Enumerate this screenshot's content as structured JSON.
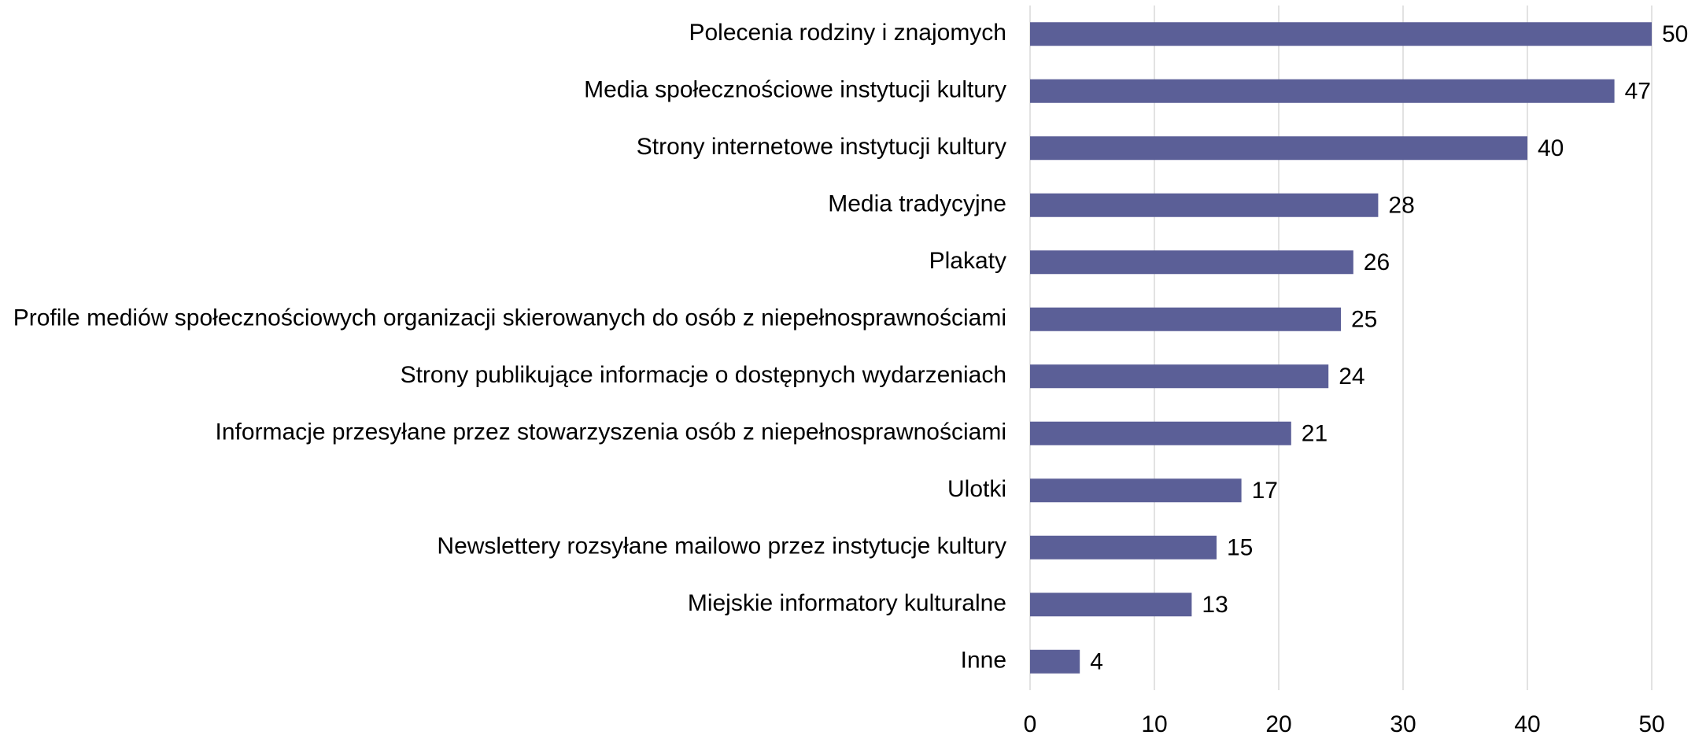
{
  "chart_data": {
    "type": "barh",
    "categories": [
      "Polecenia rodziny i znajomych",
      "Media społecznościowe instytucji kultury",
      "Strony internetowe instytucji kultury",
      "Media tradycyjne",
      "Plakaty",
      "Profile mediów społecznościowych organizacji skierowanych do osób z niepełnosprawnościami",
      "Strony publikujące informacje o dostępnych wydarzeniach",
      "Informacje przesyłane przez stowarzyszenia osób z niepełnosprawnościami",
      "Ulotki",
      "Newslettery rozsyłane mailowo przez instytucje kultury",
      "Miejskie informatory kulturalne",
      "Inne"
    ],
    "values": [
      50,
      47,
      40,
      28,
      26,
      25,
      24,
      21,
      17,
      15,
      13,
      4
    ],
    "color": "#5b5f97",
    "xlim": [
      0,
      50
    ],
    "xticks": [
      0,
      10,
      20,
      30,
      40,
      50
    ],
    "grid": true
  }
}
